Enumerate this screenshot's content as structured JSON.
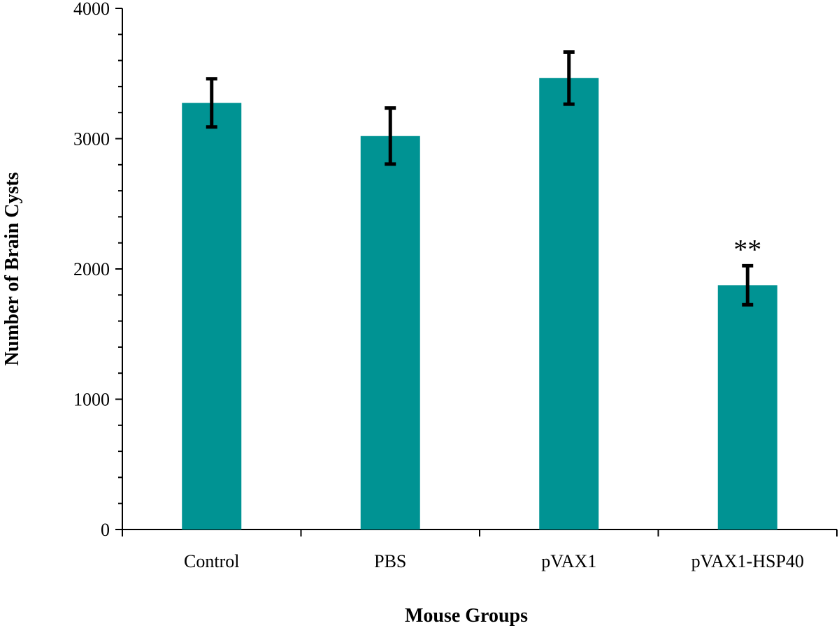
{
  "chart_data": {
    "type": "bar",
    "title": "",
    "xlabel": "Mouse Groups",
    "ylabel": "Number of Brain  Cysts",
    "categories": [
      "Control",
      "PBS",
      "pVAX1",
      "pVAX1-HSP40"
    ],
    "values": [
      3275,
      3020,
      3465,
      1875
    ],
    "errors": [
      185,
      215,
      200,
      150
    ],
    "annotations": [
      "",
      "",
      "",
      "**"
    ],
    "ylim": [
      0,
      4000
    ],
    "yticks": [
      0,
      1000,
      2000,
      3000,
      4000
    ],
    "bar_color": "#009393",
    "grid": false,
    "legend": "none"
  }
}
